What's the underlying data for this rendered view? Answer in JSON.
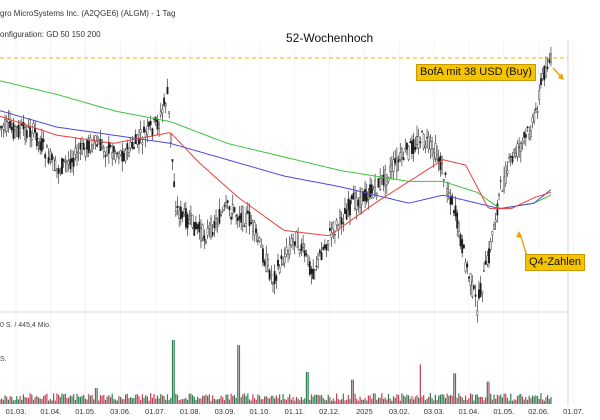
{
  "header": {
    "title": "gro MicroSystems Inc. (A2QGE6) (ALGM) - 1 Tag",
    "configuration": "onfiguration: GD 50 150 200"
  },
  "annotations": {
    "high_label": "52-Wochenhoch",
    "bofa_label": "BofA mit 38 USD (Buy)",
    "q4_label": "Q4-Zahlen"
  },
  "volume_panel": {
    "top_label": "0 S. / 445,4 Mio.",
    "second_label": "S."
  },
  "colors": {
    "up_candle": "#1a1a1a",
    "down_candle": "#1a1a1a",
    "ma50": "#e8413c",
    "ma150": "#4a4ad8",
    "ma200": "#3cc43c",
    "high_line": "#f2b400",
    "vol_up": "#2e7d4f",
    "vol_down": "#c0405a",
    "annotation_bg": "#f5c400",
    "arrow": "#f2a000"
  },
  "chart_data": {
    "type": "candlestick",
    "x_tick_labels": [
      "01.03.",
      "01.04.",
      "01.05.",
      "03.06.",
      "01.07.",
      "01.08.",
      "03.09.",
      "01.10.",
      "01.11.",
      "02.12.",
      "2025",
      "03.02.",
      "03.03.",
      "01.04.",
      "01.05.",
      "02.06.",
      "01.07."
    ],
    "series": [
      {
        "name": "GD 50"
      },
      {
        "name": "GD 150"
      },
      {
        "name": "GD 200"
      }
    ],
    "price_path_keypoints": [
      [
        0.0,
        0.32
      ],
      [
        0.06,
        0.34
      ],
      [
        0.1,
        0.48
      ],
      [
        0.16,
        0.38
      ],
      [
        0.22,
        0.42
      ],
      [
        0.28,
        0.3
      ],
      [
        0.295,
        0.2
      ],
      [
        0.31,
        0.62
      ],
      [
        0.36,
        0.72
      ],
      [
        0.4,
        0.62
      ],
      [
        0.44,
        0.66
      ],
      [
        0.48,
        0.88
      ],
      [
        0.52,
        0.72
      ],
      [
        0.55,
        0.85
      ],
      [
        0.58,
        0.72
      ],
      [
        0.62,
        0.6
      ],
      [
        0.66,
        0.55
      ],
      [
        0.7,
        0.45
      ],
      [
        0.74,
        0.36
      ],
      [
        0.77,
        0.42
      ],
      [
        0.8,
        0.62
      ],
      [
        0.82,
        0.82
      ],
      [
        0.84,
        0.98
      ],
      [
        0.86,
        0.8
      ],
      [
        0.88,
        0.56
      ],
      [
        0.9,
        0.44
      ],
      [
        0.92,
        0.38
      ],
      [
        0.94,
        0.3
      ],
      [
        0.955,
        0.14
      ],
      [
        0.965,
        0.08
      ]
    ],
    "ma50_keypoints": [
      [
        0.0,
        0.28
      ],
      [
        0.1,
        0.35
      ],
      [
        0.2,
        0.38
      ],
      [
        0.3,
        0.34
      ],
      [
        0.35,
        0.45
      ],
      [
        0.42,
        0.58
      ],
      [
        0.5,
        0.7
      ],
      [
        0.58,
        0.72
      ],
      [
        0.66,
        0.6
      ],
      [
        0.72,
        0.52
      ],
      [
        0.78,
        0.44
      ],
      [
        0.82,
        0.46
      ],
      [
        0.86,
        0.62
      ],
      [
        0.9,
        0.62
      ],
      [
        0.94,
        0.58
      ],
      [
        0.97,
        0.56
      ]
    ],
    "ma150_keypoints": [
      [
        0.0,
        0.26
      ],
      [
        0.1,
        0.32
      ],
      [
        0.2,
        0.35
      ],
      [
        0.3,
        0.38
      ],
      [
        0.4,
        0.44
      ],
      [
        0.5,
        0.5
      ],
      [
        0.6,
        0.54
      ],
      [
        0.66,
        0.57
      ],
      [
        0.72,
        0.6
      ],
      [
        0.78,
        0.57
      ],
      [
        0.84,
        0.6
      ],
      [
        0.88,
        0.62
      ],
      [
        0.94,
        0.6
      ],
      [
        0.97,
        0.55
      ]
    ],
    "ma200_keypoints": [
      [
        0.0,
        0.15
      ],
      [
        0.1,
        0.2
      ],
      [
        0.2,
        0.26
      ],
      [
        0.3,
        0.3
      ],
      [
        0.4,
        0.38
      ],
      [
        0.5,
        0.43
      ],
      [
        0.6,
        0.48
      ],
      [
        0.66,
        0.5
      ],
      [
        0.72,
        0.52
      ],
      [
        0.78,
        0.52
      ],
      [
        0.84,
        0.56
      ],
      [
        0.88,
        0.62
      ],
      [
        0.94,
        0.6
      ],
      [
        0.97,
        0.57
      ]
    ],
    "high_level_fraction": 0.0,
    "volume_spikes": [
      [
        0.17,
        0.25
      ],
      [
        0.305,
        1.0
      ],
      [
        0.42,
        0.92
      ],
      [
        0.54,
        0.5
      ],
      [
        0.62,
        0.38
      ],
      [
        0.74,
        0.62
      ],
      [
        0.8,
        0.48
      ],
      [
        0.86,
        0.35
      ]
    ]
  }
}
